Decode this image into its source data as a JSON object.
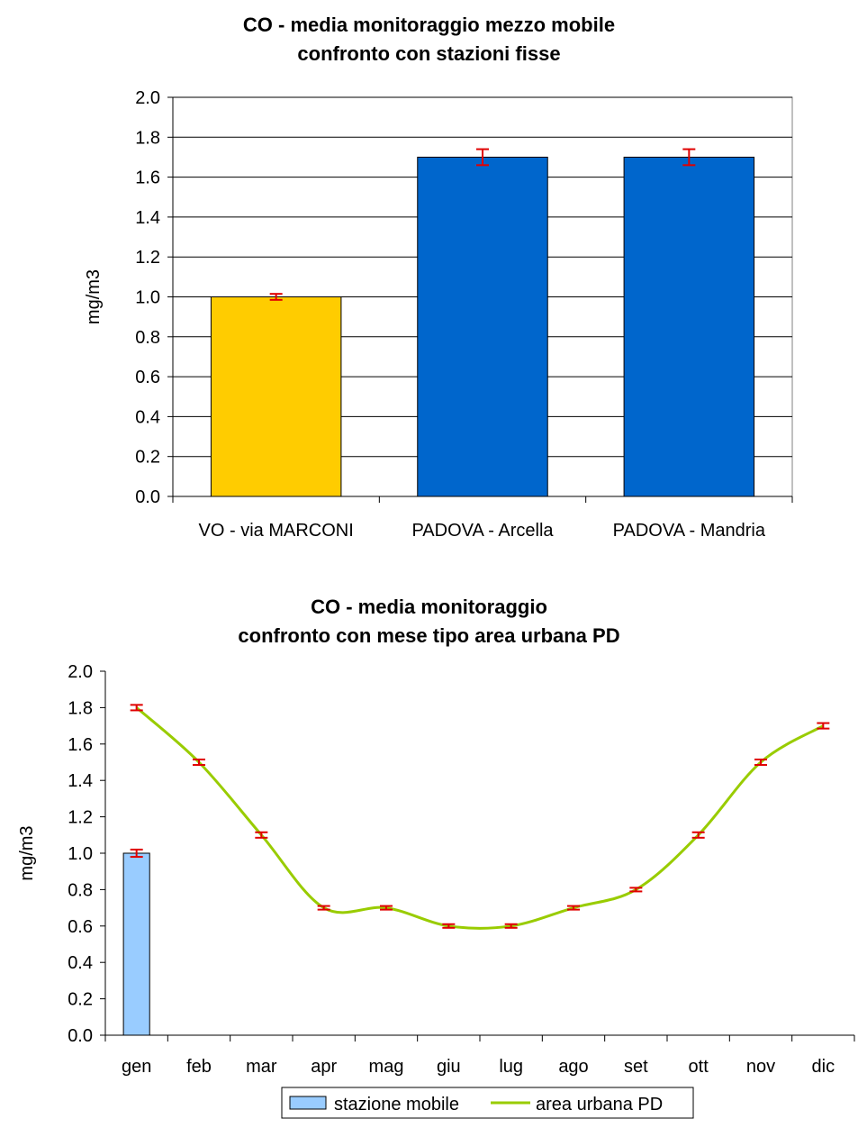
{
  "chart_data": [
    {
      "type": "bar",
      "title": [
        "CO - media monitoraggio mezzo mobile",
        "confronto con stazioni fisse"
      ],
      "ylabel": "mg/m3",
      "ylim": [
        0,
        2.0
      ],
      "yticks": [
        "0.0",
        "0.2",
        "0.4",
        "0.6",
        "0.8",
        "1.0",
        "1.2",
        "1.4",
        "1.6",
        "1.8",
        "2.0"
      ],
      "categories": [
        "VO - via MARCONI",
        "PADOVA - Arcella",
        "PADOVA - Mandria"
      ],
      "values": [
        1.0,
        1.7,
        1.7
      ],
      "errors": [
        0.015,
        0.04,
        0.04
      ],
      "colors": [
        "#FFCC00",
        "#0066CC",
        "#0066CC"
      ],
      "error_color": "#E00000",
      "grid": true
    },
    {
      "type": "bar+line",
      "title": [
        "CO - media monitoraggio",
        "confronto con mese tipo area urbana PD"
      ],
      "ylabel": "mg/m3",
      "ylim": [
        0,
        2.0
      ],
      "yticks": [
        "0.0",
        "0.2",
        "0.4",
        "0.6",
        "0.8",
        "1.0",
        "1.2",
        "1.4",
        "1.6",
        "1.8",
        "2.0"
      ],
      "categories": [
        "gen",
        "feb",
        "mar",
        "apr",
        "mag",
        "giu",
        "lug",
        "ago",
        "set",
        "ott",
        "nov",
        "dic"
      ],
      "series": [
        {
          "name": "stazione mobile",
          "kind": "bar",
          "color": "#99CCFF",
          "values": [
            1.0,
            null,
            null,
            null,
            null,
            null,
            null,
            null,
            null,
            null,
            null,
            null
          ],
          "errors": [
            0.02
          ]
        },
        {
          "name": "area urbana PD",
          "kind": "line",
          "color": "#99CC00",
          "values": [
            1.8,
            1.5,
            1.1,
            0.7,
            0.7,
            0.6,
            0.6,
            0.7,
            0.8,
            1.1,
            1.5,
            1.7
          ],
          "errors": [
            0.015,
            0.015,
            0.015,
            0.01,
            0.01,
            0.01,
            0.01,
            0.01,
            0.01,
            0.015,
            0.015,
            0.015
          ]
        }
      ],
      "error_color": "#E00000",
      "legend_position": "bottom",
      "grid": false
    }
  ]
}
